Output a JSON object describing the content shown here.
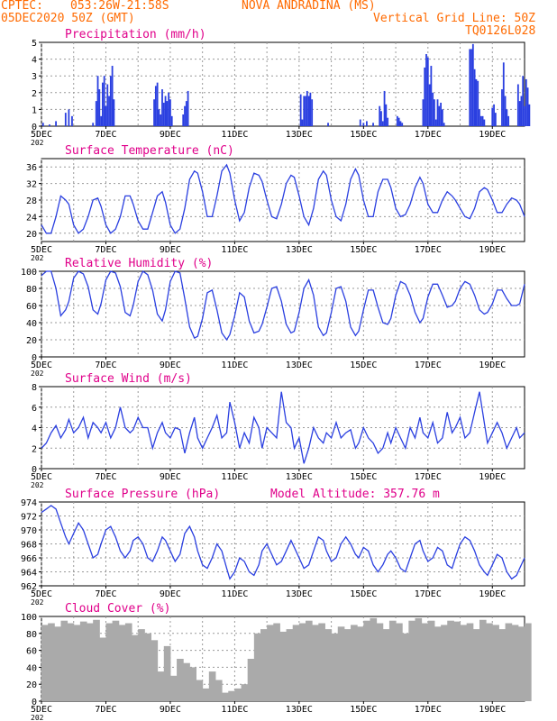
{
  "header": {
    "source": "CPTEC:",
    "coords": "053:26W-21:58S",
    "station": "NOVA ANDRADINA (MS)",
    "run": "05DEC2020 50Z (GMT)",
    "grid_note": "Vertical Grid Line: 50Z",
    "model": "TQ0126L028"
  },
  "colors": {
    "header": "#ff6a00",
    "title": "#e0008a",
    "series": "#2a3fe0",
    "cloud": "#aaaaaa",
    "grid": "#9a9a9a"
  },
  "x_ticks": [
    "5DEC",
    "7DEC",
    "9DEC",
    "11DEC",
    "13DEC",
    "15DEC",
    "17DEC",
    "19DEC"
  ],
  "year_stub": "202",
  "chart_data": [
    {
      "type": "bar",
      "title": "Precipitation (mm/h)",
      "ylim": [
        0,
        5
      ],
      "yticks": [
        "0",
        "1",
        "2",
        "3",
        "4",
        "5"
      ],
      "x_days": [
        0.05,
        0.25,
        0.45,
        0.75,
        0.85,
        0.95,
        1.6,
        1.7,
        1.75,
        1.8,
        1.85,
        1.9,
        1.95,
        2.0,
        2.05,
        2.1,
        2.15,
        2.2,
        2.25,
        3.5,
        3.55,
        3.6,
        3.65,
        3.7,
        3.75,
        3.8,
        3.85,
        3.9,
        3.95,
        4.0,
        4.05,
        4.4,
        4.45,
        4.5,
        4.55,
        8.05,
        8.1,
        8.15,
        8.2,
        8.25,
        8.3,
        8.35,
        8.4,
        8.9,
        9.9,
        10.0,
        10.1,
        10.3,
        10.5,
        10.55,
        10.6,
        10.65,
        10.7,
        10.75,
        11.05,
        11.1,
        11.15,
        11.2,
        11.85,
        11.9,
        11.95,
        12.0,
        12.05,
        12.1,
        12.15,
        12.2,
        12.25,
        12.3,
        12.35,
        12.4,
        12.45,
        12.5,
        13.3,
        13.35,
        13.4,
        13.45,
        13.5,
        13.55,
        13.6,
        13.65,
        13.7,
        13.75,
        14.0,
        14.05,
        14.1,
        14.3,
        14.35,
        14.4,
        14.45,
        14.5,
        14.8,
        14.85,
        14.9,
        14.95,
        15.0,
        15.05,
        15.1,
        15.15
      ],
      "values": [
        0.2,
        0.1,
        0.3,
        0.8,
        1.0,
        0.6,
        0.2,
        1.5,
        3.0,
        2.2,
        0.6,
        2.6,
        3.0,
        1.2,
        2.5,
        1.8,
        3.0,
        3.6,
        1.6,
        1.6,
        2.4,
        2.6,
        1.0,
        0.7,
        2.2,
        1.4,
        1.8,
        1.5,
        2.0,
        1.6,
        0.6,
        0.7,
        1.2,
        1.5,
        2.1,
        1.9,
        0.4,
        1.8,
        1.8,
        2.1,
        1.8,
        2.0,
        1.6,
        0.2,
        0.4,
        0.2,
        0.3,
        0.2,
        1.2,
        0.9,
        0.3,
        2.1,
        1.3,
        0.5,
        0.6,
        0.5,
        0.3,
        0.2,
        1.6,
        3.5,
        4.3,
        4.1,
        2.5,
        3.6,
        2.0,
        1.6,
        0.4,
        1.6,
        1.2,
        1.4,
        1.0,
        0.2,
        4.6,
        4.6,
        4.9,
        3.4,
        2.8,
        2.7,
        1.0,
        0.6,
        0.6,
        0.4,
        1.1,
        1.3,
        0.8,
        2.2,
        3.8,
        1.8,
        1.0,
        0.6,
        2.5,
        1.5,
        1.8,
        3.0,
        1.2,
        2.8,
        2.3,
        1.3
      ]
    },
    {
      "type": "line",
      "title": "Surface Temperature (nC)",
      "ylim": [
        18,
        38
      ],
      "yticks": [
        "20",
        "24",
        "28",
        "32",
        "36"
      ],
      "x_days": [
        0.0,
        0.15,
        0.3,
        0.45,
        0.6,
        0.75,
        0.85,
        1.0,
        1.15,
        1.3,
        1.45,
        1.6,
        1.75,
        1.85,
        2.0,
        2.15,
        2.3,
        2.45,
        2.6,
        2.75,
        2.85,
        3.0,
        3.15,
        3.3,
        3.45,
        3.6,
        3.75,
        3.85,
        4.0,
        4.15,
        4.3,
        4.45,
        4.6,
        4.75,
        4.85,
        5.0,
        5.15,
        5.3,
        5.45,
        5.6,
        5.75,
        5.85,
        6.0,
        6.15,
        6.3,
        6.45,
        6.6,
        6.75,
        6.85,
        7.0,
        7.15,
        7.3,
        7.45,
        7.6,
        7.75,
        7.85,
        8.0,
        8.15,
        8.3,
        8.45,
        8.6,
        8.75,
        8.85,
        9.0,
        9.15,
        9.3,
        9.45,
        9.6,
        9.75,
        9.85,
        10.0,
        10.15,
        10.3,
        10.45,
        10.6,
        10.75,
        10.85,
        11.0,
        11.15,
        11.3,
        11.45,
        11.6,
        11.75,
        11.85,
        12.0,
        12.15,
        12.3,
        12.45,
        12.6,
        12.75,
        12.85,
        13.0,
        13.15,
        13.3,
        13.45,
        13.6,
        13.75,
        13.85,
        14.0,
        14.15,
        14.3,
        14.45,
        14.6,
        14.75,
        14.85,
        15.0
      ],
      "values": [
        22.0,
        20.0,
        20.0,
        24.0,
        29.0,
        28.0,
        27.0,
        22.0,
        20.0,
        21.0,
        24.0,
        28.0,
        28.5,
        26.5,
        22.0,
        20.0,
        21.0,
        24.0,
        29.0,
        29.0,
        27.0,
        23.0,
        21.0,
        21.0,
        25.0,
        29.0,
        30.0,
        27.5,
        22.0,
        20.0,
        21.0,
        26.0,
        33.0,
        35.0,
        34.5,
        30.0,
        24.0,
        24.0,
        29.0,
        35.0,
        36.5,
        34.5,
        28.0,
        23.0,
        25.0,
        31.0,
        34.5,
        34.0,
        32.5,
        28.0,
        24.0,
        23.5,
        27.0,
        32.0,
        34.0,
        33.5,
        29.0,
        24.0,
        22.0,
        26.0,
        33.0,
        35.0,
        34.0,
        28.0,
        24.0,
        23.0,
        27.0,
        33.0,
        35.5,
        34.0,
        28.0,
        24.0,
        24.0,
        30.0,
        33.0,
        33.0,
        31.0,
        26.0,
        24.0,
        24.5,
        27.0,
        31.0,
        33.5,
        32.0,
        27.0,
        25.0,
        25.0,
        28.0,
        30.0,
        29.0,
        28.0,
        26.0,
        24.0,
        23.5,
        26.0,
        30.0,
        31.0,
        30.5,
        28.0,
        25.0,
        25.0,
        27.0,
        28.5,
        28.0,
        27.0,
        24.0
      ]
    },
    {
      "type": "line",
      "title": "Relative Humidity (%)",
      "ylim": [
        0,
        100
      ],
      "yticks": [
        "0",
        "20",
        "40",
        "60",
        "80",
        "100"
      ],
      "x_days": [
        0.0,
        0.15,
        0.3,
        0.45,
        0.6,
        0.75,
        0.85,
        1.0,
        1.15,
        1.3,
        1.45,
        1.6,
        1.75,
        1.85,
        2.0,
        2.15,
        2.3,
        2.45,
        2.6,
        2.75,
        2.85,
        3.0,
        3.15,
        3.3,
        3.45,
        3.6,
        3.75,
        3.85,
        4.0,
        4.15,
        4.3,
        4.45,
        4.6,
        4.75,
        4.85,
        5.0,
        5.15,
        5.3,
        5.45,
        5.6,
        5.75,
        5.85,
        6.0,
        6.15,
        6.3,
        6.45,
        6.6,
        6.75,
        6.85,
        7.0,
        7.15,
        7.3,
        7.45,
        7.6,
        7.75,
        7.85,
        8.0,
        8.15,
        8.3,
        8.45,
        8.6,
        8.75,
        8.85,
        9.0,
        9.15,
        9.3,
        9.45,
        9.6,
        9.75,
        9.85,
        10.0,
        10.15,
        10.3,
        10.45,
        10.6,
        10.75,
        10.85,
        11.0,
        11.15,
        11.3,
        11.45,
        11.6,
        11.75,
        11.85,
        12.0,
        12.15,
        12.3,
        12.45,
        12.6,
        12.75,
        12.85,
        13.0,
        13.15,
        13.3,
        13.45,
        13.6,
        13.75,
        13.85,
        14.0,
        14.15,
        14.3,
        14.45,
        14.6,
        14.75,
        14.85,
        15.0
      ],
      "values": [
        95.0,
        100.0,
        100.0,
        80.0,
        48.0,
        55.0,
        65.0,
        92.0,
        100.0,
        97.0,
        82.0,
        55.0,
        50.0,
        62.0,
        90.0,
        100.0,
        98.0,
        82.0,
        52.0,
        48.0,
        60.0,
        88.0,
        100.0,
        96.0,
        78.0,
        50.0,
        42.0,
        55.0,
        88.0,
        100.0,
        98.0,
        68.0,
        35.0,
        22.0,
        24.0,
        45.0,
        75.0,
        78.0,
        55.0,
        28.0,
        20.0,
        26.0,
        48.0,
        75.0,
        70.0,
        42.0,
        28.0,
        30.0,
        38.0,
        58.0,
        80.0,
        82.0,
        65.0,
        38.0,
        28.0,
        30.0,
        52.0,
        80.0,
        90.0,
        72.0,
        35.0,
        25.0,
        28.0,
        52.0,
        80.0,
        82.0,
        65.0,
        35.0,
        25.0,
        30.0,
        55.0,
        78.0,
        78.0,
        58.0,
        40.0,
        38.0,
        45.0,
        72.0,
        88.0,
        85.0,
        72.0,
        52.0,
        40.0,
        45.0,
        70.0,
        85.0,
        85.0,
        72.0,
        58.0,
        60.0,
        65.0,
        80.0,
        88.0,
        85.0,
        72.0,
        55.0,
        50.0,
        52.0,
        62.0,
        78.0,
        78.0,
        68.0,
        60.0,
        60.0,
        62.0,
        85.0
      ]
    },
    {
      "type": "line",
      "title": "Surface Wind (m/s)",
      "ylim": [
        0,
        8
      ],
      "yticks": [
        "0",
        "2",
        "4",
        "6",
        "8"
      ],
      "x_days": [
        0.0,
        0.15,
        0.3,
        0.45,
        0.6,
        0.75,
        0.85,
        1.0,
        1.15,
        1.3,
        1.45,
        1.6,
        1.75,
        1.85,
        2.0,
        2.15,
        2.3,
        2.45,
        2.6,
        2.75,
        2.85,
        3.0,
        3.15,
        3.3,
        3.45,
        3.6,
        3.75,
        3.85,
        4.0,
        4.15,
        4.3,
        4.45,
        4.6,
        4.75,
        4.85,
        5.0,
        5.15,
        5.3,
        5.45,
        5.6,
        5.75,
        5.85,
        6.0,
        6.15,
        6.3,
        6.45,
        6.6,
        6.75,
        6.85,
        7.0,
        7.15,
        7.3,
        7.45,
        7.6,
        7.75,
        7.85,
        8.0,
        8.15,
        8.3,
        8.45,
        8.6,
        8.75,
        8.85,
        9.0,
        9.15,
        9.3,
        9.45,
        9.6,
        9.75,
        9.85,
        10.0,
        10.15,
        10.3,
        10.45,
        10.6,
        10.75,
        10.85,
        11.0,
        11.15,
        11.3,
        11.45,
        11.6,
        11.75,
        11.85,
        12.0,
        12.15,
        12.3,
        12.45,
        12.6,
        12.75,
        12.85,
        13.0,
        13.15,
        13.3,
        13.45,
        13.6,
        13.75,
        13.85,
        14.0,
        14.15,
        14.3,
        14.45,
        14.6,
        14.75,
        14.85,
        15.0
      ],
      "values": [
        2.0,
        2.5,
        3.5,
        4.2,
        3.0,
        3.8,
        4.8,
        3.5,
        4.0,
        5.0,
        3.0,
        4.5,
        4.0,
        3.5,
        4.5,
        3.0,
        4.0,
        6.0,
        4.0,
        3.5,
        3.8,
        5.0,
        4.0,
        4.0,
        2.0,
        3.5,
        4.5,
        3.5,
        3.0,
        4.0,
        3.8,
        1.5,
        3.5,
        5.0,
        3.0,
        2.0,
        3.0,
        4.0,
        5.2,
        3.0,
        3.5,
        6.5,
        4.5,
        2.0,
        3.5,
        2.5,
        5.0,
        4.0,
        2.0,
        4.0,
        3.5,
        3.0,
        7.5,
        4.5,
        4.0,
        2.0,
        3.0,
        0.5,
        2.0,
        4.0,
        3.0,
        2.5,
        3.5,
        3.0,
        4.5,
        3.0,
        3.5,
        3.8,
        2.0,
        2.5,
        4.0,
        3.0,
        2.5,
        1.5,
        2.0,
        3.5,
        2.5,
        4.0,
        3.0,
        2.0,
        4.0,
        3.0,
        5.0,
        3.5,
        3.0,
        4.5,
        2.5,
        3.0,
        5.5,
        3.5,
        4.0,
        5.0,
        3.0,
        3.5,
        5.5,
        7.5,
        4.5,
        2.5,
        3.5,
        4.5,
        3.5,
        2.0,
        3.0,
        4.0,
        3.0,
        3.5
      ]
    },
    {
      "type": "line",
      "title": "Surface Pressure (hPa)",
      "subtitle": "Model Altitude: 357.76 m",
      "ylim": [
        962,
        974
      ],
      "yticks": [
        "962",
        "964",
        "966",
        "968",
        "970",
        "972",
        "974"
      ],
      "x_days": [
        0.0,
        0.15,
        0.3,
        0.45,
        0.6,
        0.75,
        0.85,
        1.0,
        1.15,
        1.3,
        1.45,
        1.6,
        1.75,
        1.85,
        2.0,
        2.15,
        2.3,
        2.45,
        2.6,
        2.75,
        2.85,
        3.0,
        3.15,
        3.3,
        3.45,
        3.6,
        3.75,
        3.85,
        4.0,
        4.15,
        4.3,
        4.45,
        4.6,
        4.75,
        4.85,
        5.0,
        5.15,
        5.3,
        5.45,
        5.6,
        5.75,
        5.85,
        6.0,
        6.15,
        6.3,
        6.45,
        6.6,
        6.75,
        6.85,
        7.0,
        7.15,
        7.3,
        7.45,
        7.6,
        7.75,
        7.85,
        8.0,
        8.15,
        8.3,
        8.45,
        8.6,
        8.75,
        8.85,
        9.0,
        9.15,
        9.3,
        9.45,
        9.6,
        9.75,
        9.85,
        10.0,
        10.15,
        10.3,
        10.45,
        10.6,
        10.75,
        10.85,
        11.0,
        11.15,
        11.3,
        11.45,
        11.6,
        11.75,
        11.85,
        12.0,
        12.15,
        12.3,
        12.45,
        12.6,
        12.75,
        12.85,
        13.0,
        13.15,
        13.3,
        13.45,
        13.6,
        13.75,
        13.85,
        14.0,
        14.15,
        14.3,
        14.45,
        14.6,
        14.75,
        14.85,
        15.0
      ],
      "values": [
        972.5,
        973.0,
        973.5,
        973.0,
        971.0,
        969.0,
        968.0,
        969.5,
        971.0,
        970.0,
        968.0,
        966.0,
        966.5,
        968.0,
        970.0,
        970.5,
        969.0,
        967.0,
        966.0,
        967.0,
        968.5,
        969.0,
        968.0,
        966.0,
        965.5,
        967.0,
        969.0,
        968.5,
        967.0,
        965.5,
        966.5,
        969.5,
        970.5,
        969.0,
        967.0,
        965.0,
        964.5,
        966.0,
        968.0,
        967.0,
        964.5,
        963.0,
        964.0,
        966.0,
        965.5,
        964.0,
        963.5,
        965.0,
        967.0,
        968.0,
        966.5,
        965.0,
        965.5,
        967.0,
        968.5,
        967.5,
        966.0,
        964.5,
        965.0,
        967.0,
        969.0,
        968.5,
        967.0,
        965.5,
        966.0,
        968.0,
        969.0,
        968.0,
        966.5,
        966.0,
        967.5,
        967.0,
        965.0,
        964.0,
        965.0,
        966.5,
        967.0,
        966.0,
        964.5,
        964.0,
        966.0,
        968.0,
        968.5,
        967.0,
        965.5,
        966.0,
        967.5,
        967.0,
        965.0,
        964.5,
        966.0,
        968.0,
        969.0,
        968.5,
        967.0,
        965.0,
        964.0,
        963.5,
        965.0,
        966.5,
        966.0,
        964.0,
        963.0,
        963.5,
        964.5,
        966.0
      ]
    },
    {
      "type": "area",
      "title": "Cloud Cover (%)",
      "ylim": [
        0,
        100
      ],
      "yticks": [
        "0",
        "20",
        "40",
        "60",
        "80",
        "100"
      ],
      "x_days": [
        0.0,
        0.2,
        0.4,
        0.6,
        0.8,
        1.0,
        1.2,
        1.4,
        1.6,
        1.8,
        2.0,
        2.2,
        2.4,
        2.6,
        2.8,
        3.0,
        3.2,
        3.4,
        3.6,
        3.8,
        4.0,
        4.2,
        4.4,
        4.6,
        4.8,
        5.0,
        5.2,
        5.4,
        5.6,
        5.8,
        6.0,
        6.2,
        6.4,
        6.6,
        6.8,
        7.0,
        7.2,
        7.4,
        7.6,
        7.8,
        8.0,
        8.2,
        8.4,
        8.6,
        8.8,
        9.0,
        9.2,
        9.4,
        9.6,
        9.8,
        10.0,
        10.2,
        10.4,
        10.6,
        10.8,
        11.0,
        11.2,
        11.4,
        11.6,
        11.8,
        12.0,
        12.2,
        12.4,
        12.6,
        12.8,
        13.0,
        13.2,
        13.4,
        13.6,
        13.8,
        14.0,
        14.2,
        14.4,
        14.6,
        14.8,
        15.0
      ],
      "values": [
        90.0,
        92.0,
        88.0,
        95.0,
        92.0,
        90.0,
        94.0,
        92.0,
        96.0,
        75.0,
        92.0,
        95.0,
        90.0,
        92.0,
        78.0,
        85.0,
        80.0,
        72.0,
        35.0,
        65.0,
        30.0,
        50.0,
        45.0,
        40.0,
        25.0,
        15.0,
        35.0,
        25.0,
        10.0,
        12.0,
        15.0,
        20.0,
        50.0,
        80.0,
        85.0,
        90.0,
        92.0,
        82.0,
        85.0,
        90.0,
        92.0,
        95.0,
        90.0,
        92.0,
        85.0,
        80.0,
        88.0,
        85.0,
        90.0,
        88.0,
        95.0,
        98.0,
        92.0,
        85.0,
        95.0,
        92.0,
        80.0,
        95.0,
        98.0,
        92.0,
        95.0,
        88.0,
        90.0,
        95.0,
        94.0,
        90.0,
        92.0,
        85.0,
        96.0,
        92.0,
        90.0,
        85.0,
        92.0,
        90.0,
        88.0,
        92.0
      ]
    }
  ]
}
